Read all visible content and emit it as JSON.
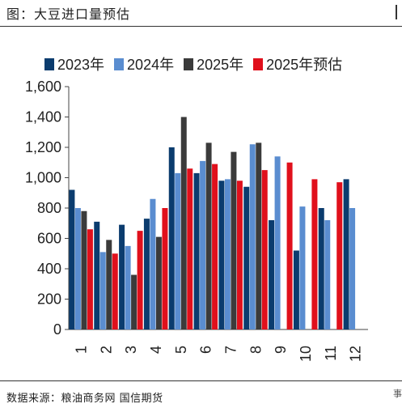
{
  "header": {
    "title": "图：大豆进口量预估"
  },
  "footer": {
    "source": "数据来源：粮油商务网  国信期货"
  },
  "edge": {
    "char": "事"
  },
  "colors": {
    "s2023": "#0b3c6e",
    "s2024": "#5a8dd0",
    "s2025": "#3b3b3b",
    "s2025f": "#e0101c"
  },
  "chart_data": {
    "type": "bar",
    "title": "",
    "xlabel": "",
    "ylabel": "",
    "ylim": [
      0,
      1600
    ],
    "yticks": [
      0,
      200,
      400,
      600,
      800,
      1000,
      1200,
      1400,
      1600
    ],
    "ytick_labels": [
      "0",
      "200",
      "400",
      "600",
      "800",
      "1,000",
      "1,200",
      "1,400",
      "1,600"
    ],
    "categories": [
      "1",
      "2",
      "3",
      "4",
      "5",
      "6",
      "7",
      "8",
      "9",
      "10",
      "11",
      "12"
    ],
    "grid": false,
    "legend_position": "top",
    "series": [
      {
        "name": "2023年",
        "color_key": "s2023",
        "values": [
          920,
          710,
          690,
          730,
          1200,
          1030,
          980,
          940,
          720,
          520,
          800,
          990
        ]
      },
      {
        "name": "2024年",
        "color_key": "s2024",
        "values": [
          800,
          510,
          550,
          860,
          1030,
          1110,
          990,
          1220,
          1140,
          810,
          720,
          800
        ]
      },
      {
        "name": "2025年",
        "color_key": "s2025",
        "values": [
          780,
          590,
          360,
          610,
          1400,
          1230,
          1170,
          1230,
          null,
          null,
          null,
          null
        ]
      },
      {
        "name": "2025年预估",
        "color_key": "s2025f",
        "values": [
          660,
          500,
          650,
          800,
          1060,
          1090,
          980,
          1050,
          1100,
          990,
          970,
          null
        ]
      }
    ]
  }
}
